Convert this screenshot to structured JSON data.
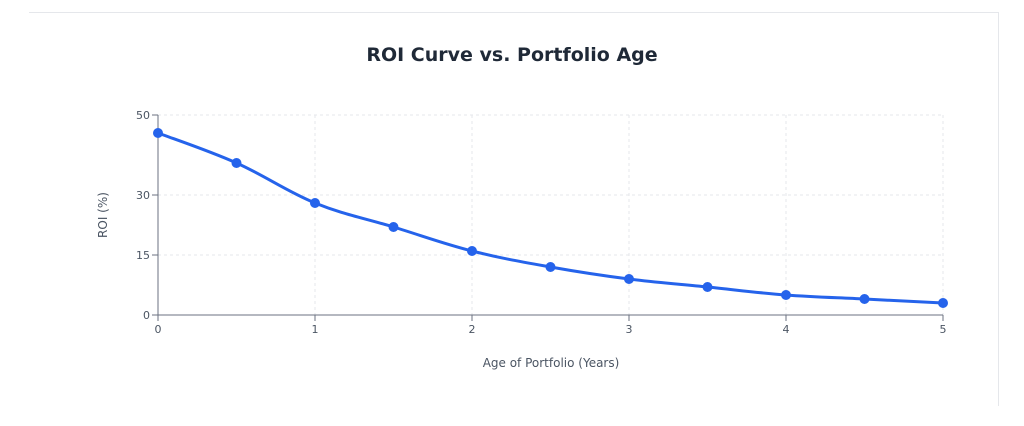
{
  "chart": {
    "title": "ROI Curve vs. Portfolio Age",
    "xlabel": "Age of Portfolio (Years)",
    "ylabel": "ROI (%)",
    "line_color": "#2563eb"
  },
  "chart_data": {
    "type": "line",
    "title": "ROI Curve vs. Portfolio Age",
    "xlabel": "Age of Portfolio (Years)",
    "ylabel": "ROI (%)",
    "x": [
      0,
      0.5,
      1,
      1.5,
      2,
      2.5,
      3,
      3.5,
      4,
      4.5,
      5
    ],
    "series": [
      {
        "name": "ROI",
        "values": [
          45.5,
          38,
          28,
          22,
          16,
          12,
          9,
          7,
          5,
          4,
          3
        ],
        "color": "#2563eb"
      }
    ],
    "xticks": [
      0,
      1,
      2,
      3,
      4,
      5
    ],
    "yticks": [
      0,
      15,
      30,
      50
    ],
    "xlim": [
      0,
      5
    ],
    "ylim": [
      0,
      50
    ],
    "grid": true,
    "legend": false,
    "curve": "smooth"
  }
}
